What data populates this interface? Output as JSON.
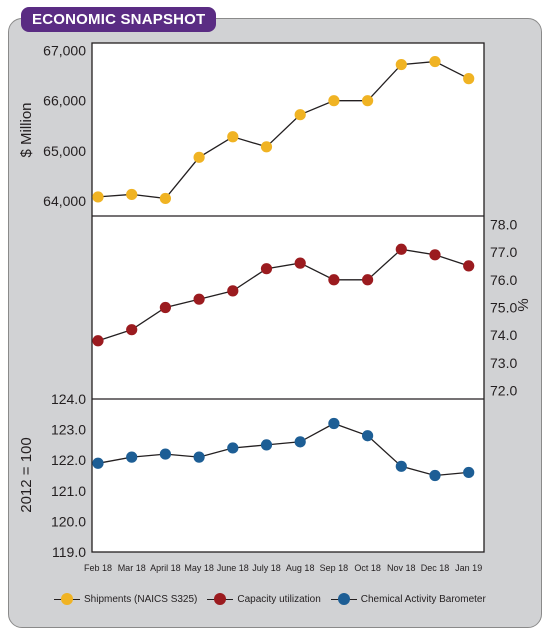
{
  "header": {
    "title": "ECONOMIC SNAPSHOT"
  },
  "chart_data": {
    "type": "line",
    "categories": [
      "Feb 18",
      "Mar 18",
      "April 18",
      "May 18",
      "June 18",
      "July 18",
      "Aug 18",
      "Sep 18",
      "Oct 18",
      "Nov 18",
      "Dec 18",
      "Jan 19"
    ],
    "panels": [
      {
        "series_name": "Shipments (NAICS S325)",
        "ylabel": "$ Million",
        "axis_side": "left",
        "ylim": [
          63700,
          67150
        ],
        "yticks": [
          64000,
          65000,
          66000,
          67000
        ],
        "tick_labels": [
          "64,000",
          "65,000",
          "66,000",
          "67,000"
        ],
        "values": [
          64080,
          64130,
          64050,
          64870,
          65280,
          65080,
          65720,
          66000,
          66000,
          66720,
          66780,
          66440
        ],
        "color": "#f0b323"
      },
      {
        "series_name": "Capacity utilization",
        "ylabel": "%",
        "axis_side": "right",
        "ylim": [
          71.7,
          78.3
        ],
        "yticks": [
          72.0,
          73.0,
          74.0,
          75.0,
          76.0,
          77.0,
          78.0
        ],
        "tick_labels": [
          "72.0",
          "73.0",
          "74.0",
          "75.0",
          "76.0",
          "77.0",
          "78.0"
        ],
        "values": [
          73.8,
          74.2,
          75.0,
          75.3,
          75.6,
          76.4,
          76.6,
          76.0,
          76.0,
          77.1,
          76.9,
          76.5
        ],
        "color": "#9b1b1f"
      },
      {
        "series_name": "Chemical Activity Barometer",
        "ylabel": "2012 = 100",
        "axis_side": "left",
        "ylim": [
          119.0,
          124.0
        ],
        "yticks": [
          119.0,
          120.0,
          121.0,
          122.0,
          123.0,
          124.0
        ],
        "tick_labels": [
          "119.0",
          "120.0",
          "121.0",
          "122.0",
          "123.0",
          "124.0"
        ],
        "values": [
          121.9,
          122.1,
          122.2,
          122.1,
          122.4,
          122.5,
          122.6,
          123.2,
          122.8,
          121.8,
          121.5,
          121.6
        ],
        "color": "#1d5e95"
      }
    ],
    "legend": {
      "placement": "bottom"
    },
    "grid": false
  },
  "legend": {
    "items": [
      {
        "label": "Shipments (NAICS S325)",
        "color": "#f0b323"
      },
      {
        "label": "Capacity utilization",
        "color": "#9b1b1f"
      },
      {
        "label": "Chemical Activity Barometer",
        "color": "#1d5e95"
      }
    ]
  }
}
